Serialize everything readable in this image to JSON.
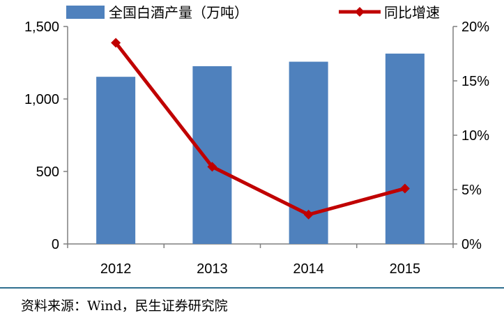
{
  "chart_data": {
    "type": "bar",
    "categories": [
      "2012",
      "2013",
      "2014",
      "2015"
    ],
    "series": [
      {
        "name": "全国白酒产量（万吨）",
        "type": "bar",
        "axis": "left",
        "values": [
          1153,
          1226,
          1257,
          1313
        ],
        "color": "#4f81bd"
      },
      {
        "name": "同比增速",
        "type": "line",
        "axis": "right",
        "values": [
          18.5,
          7.1,
          2.7,
          5.1
        ],
        "color": "#c00000"
      }
    ],
    "left_axis": {
      "ylim": [
        0,
        1500
      ],
      "ticks": [
        0,
        500,
        1000,
        1500
      ],
      "tick_labels": [
        "0",
        "500",
        "1,000",
        "1,500"
      ]
    },
    "right_axis": {
      "ylim": [
        0,
        20
      ],
      "ticks": [
        0,
        5,
        10,
        15,
        20
      ],
      "tick_labels": [
        "0%",
        "5%",
        "10%",
        "15%",
        "20%"
      ]
    },
    "legend": "top",
    "grid": false
  },
  "source": "资料来源：Wind，民生证券研究院"
}
